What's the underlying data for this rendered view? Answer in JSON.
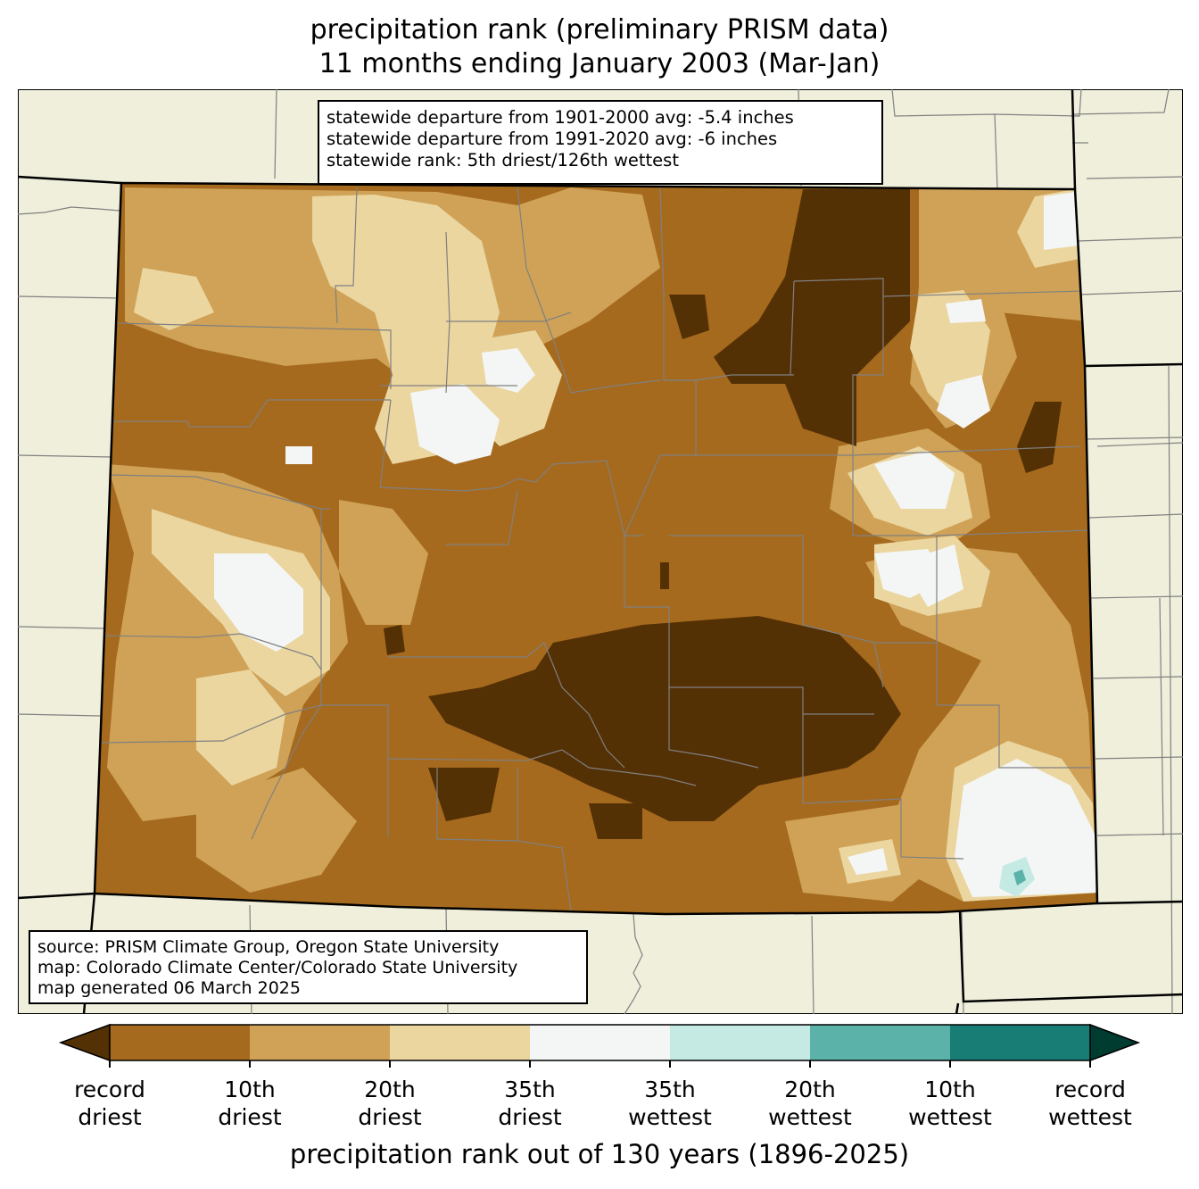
{
  "title": {
    "line1": "precipitation rank (preliminary PRISM data)",
    "line2": "11 months ending January 2003 (Mar-Jan)"
  },
  "stats": {
    "line1": "statewide departure from 1901-2000 avg: -5.4 inches",
    "line2": "statewide departure from 1991-2020 avg: -6 inches",
    "line3": "statewide rank: 5th driest/126th wettest"
  },
  "credits": {
    "line1": "source: PRISM Climate Group, Oregon State University",
    "line2": "map: Colorado Climate Center/Colorado State University",
    "line3": "map generated 06 March 2025"
  },
  "legend": {
    "label": "precipitation rank out of 130 years (1896-2025)",
    "ticks": [
      {
        "line1": "record",
        "line2": "driest"
      },
      {
        "line1": "10th",
        "line2": "driest"
      },
      {
        "line1": "20th",
        "line2": "driest"
      },
      {
        "line1": "35th",
        "line2": "driest"
      },
      {
        "line1": "35th",
        "line2": "wettest"
      },
      {
        "line1": "20th",
        "line2": "wettest"
      },
      {
        "line1": "10th",
        "line2": "wettest"
      },
      {
        "line1": "record",
        "line2": "wettest"
      }
    ],
    "colors": {
      "below_record_driest": "#543005",
      "record_to_10th_driest": "#a56a1e",
      "10th_to_20th_driest": "#cfa257",
      "20th_to_35th_driest": "#ebd6a0",
      "middle": "#f4f5f5",
      "35th_to_20th_wettest": "#c5eae4",
      "20th_to_10th_wettest": "#5ab2a8",
      "10th_to_record_wettest": "#187d75",
      "beyond_record_wettest": "#003c30"
    }
  },
  "map": {
    "background_color": "#f0efdc",
    "state_line_color": "#000000",
    "county_line_color": "#808080"
  }
}
